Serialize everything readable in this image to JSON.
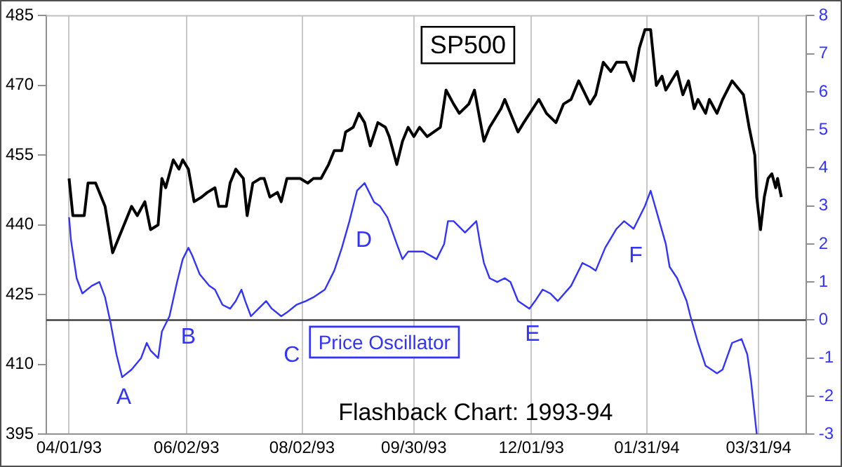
{
  "chart_data": {
    "type": "line",
    "title": "Flashback Chart: 1993-94",
    "xlim": [
      "1993-03-20",
      "1994-04-25"
    ],
    "xticks": [
      {
        "value": "1993-04-01",
        "label": "04/01/93"
      },
      {
        "value": "1993-06-02",
        "label": "06/02/93"
      },
      {
        "value": "1993-08-02",
        "label": "08/02/93"
      },
      {
        "value": "1993-09-30",
        "label": "09/30/93"
      },
      {
        "value": "1993-12-01",
        "label": "12/01/93"
      },
      {
        "value": "1994-01-31",
        "label": "01/31/94"
      },
      {
        "value": "1994-03-31",
        "label": "03/31/94"
      }
    ],
    "ylim": [
      395,
      485
    ],
    "yticks": [
      395,
      410,
      425,
      440,
      455,
      470,
      485
    ],
    "y2lim": [
      -3,
      8
    ],
    "y2ticks": [
      -3,
      -2,
      -1,
      0,
      1,
      2,
      3,
      4,
      5,
      6,
      7,
      8
    ],
    "grid": "x",
    "legend": false,
    "series": [
      {
        "name": "SP500",
        "color": "#000000",
        "x": [
          "1993-04-01",
          "1993-04-03",
          "1993-04-05",
          "1993-04-09",
          "1993-04-11",
          "1993-04-15",
          "1993-04-20",
          "1993-04-24",
          "1993-04-28",
          "1993-05-04",
          "1993-05-07",
          "1993-05-11",
          "1993-05-14",
          "1993-05-18",
          "1993-05-20",
          "1993-05-22",
          "1993-05-26",
          "1993-05-29",
          "1993-05-31",
          "1993-06-03",
          "1993-06-06",
          "1993-06-10",
          "1993-06-13",
          "1993-06-17",
          "1993-06-19",
          "1993-06-23",
          "1993-06-25",
          "1993-06-28",
          "1993-07-02",
          "1993-07-04",
          "1993-07-07",
          "1993-07-11",
          "1993-07-13",
          "1993-07-16",
          "1993-07-20",
          "1993-07-22",
          "1993-07-25",
          "1993-07-28",
          "1993-08-01",
          "1993-08-05",
          "1993-08-08",
          "1993-08-12",
          "1993-08-16",
          "1993-08-19",
          "1993-08-23",
          "1993-08-25",
          "1993-08-29",
          "1993-09-01",
          "1993-09-04",
          "1993-09-07",
          "1993-09-11",
          "1993-09-15",
          "1993-09-17",
          "1993-09-21",
          "1993-09-24",
          "1993-09-27",
          "1993-09-30",
          "1993-10-03",
          "1993-10-07",
          "1993-10-14",
          "1993-10-17",
          "1993-10-21",
          "1993-10-24",
          "1993-10-29",
          "1993-11-01",
          "1993-11-06",
          "1993-11-09",
          "1993-11-15",
          "1993-11-17",
          "1993-11-24",
          "1993-11-27",
          "1993-12-05",
          "1993-12-09",
          "1993-12-14",
          "1993-12-18",
          "1993-12-22",
          "1993-12-26",
          "1994-01-01",
          "1994-01-04",
          "1994-01-08",
          "1994-01-12",
          "1994-01-15",
          "1994-01-20",
          "1994-01-24",
          "1994-01-27",
          "1994-01-30",
          "1994-02-02",
          "1994-02-05",
          "1994-02-08",
          "1994-02-10",
          "1994-02-16",
          "1994-02-19",
          "1994-02-22",
          "1994-02-25",
          "1994-02-27",
          "1994-03-03",
          "1994-03-05",
          "1994-03-09",
          "1994-03-12",
          "1994-03-17",
          "1994-03-21",
          "1994-03-23",
          "1994-03-26",
          "1994-03-29",
          "1994-03-30",
          "1994-04-01",
          "1994-04-03",
          "1994-04-05",
          "1994-04-07",
          "1994-04-09",
          "1994-04-10",
          "1994-04-12"
        ],
        "values": [
          450,
          442,
          442,
          442,
          449,
          449,
          444,
          434,
          438,
          444,
          442,
          445,
          439,
          440,
          450,
          448,
          454,
          452,
          454,
          452,
          445,
          446,
          447,
          448,
          444,
          444,
          449,
          452,
          450,
          442,
          449,
          450,
          450,
          446,
          447,
          445,
          450,
          450,
          450,
          449,
          450,
          450,
          453,
          456,
          456,
          460,
          461,
          464,
          462,
          457,
          462,
          461,
          459,
          453,
          458,
          461,
          459,
          461,
          459,
          461,
          469,
          466,
          464,
          466,
          469,
          458,
          461,
          465,
          467,
          460,
          462,
          467,
          464,
          462,
          466,
          467,
          471,
          466,
          468,
          475,
          473,
          475,
          475,
          471,
          478,
          482,
          482,
          470,
          472,
          469,
          473,
          468,
          471,
          465,
          467,
          464,
          467,
          464,
          467,
          471,
          469,
          468,
          461,
          455,
          446,
          439,
          446,
          450,
          451,
          448,
          450,
          446
        ]
      },
      {
        "name": "Price Oscillator",
        "color": "#3333ff",
        "axis": "y2",
        "x": [
          "1993-04-01",
          "1993-04-02",
          "1993-04-05",
          "1993-04-08",
          "1993-04-13",
          "1993-04-17",
          "1993-04-20",
          "1993-04-23",
          "1993-04-26",
          "1993-04-29",
          "1993-05-04",
          "1993-05-09",
          "1993-05-12",
          "1993-05-14",
          "1993-05-18",
          "1993-05-20",
          "1993-05-24",
          "1993-05-28",
          "1993-05-31",
          "1993-06-03",
          "1993-06-05",
          "1993-06-09",
          "1993-06-14",
          "1993-06-17",
          "1993-06-21",
          "1993-06-25",
          "1993-06-28",
          "1993-07-01",
          "1993-07-03",
          "1993-07-06",
          "1993-07-10",
          "1993-07-14",
          "1993-07-17",
          "1993-07-22",
          "1993-07-25",
          "1993-07-30",
          "1993-08-04",
          "1993-08-08",
          "1993-08-14",
          "1993-08-19",
          "1993-08-23",
          "1993-08-27",
          "1993-08-31",
          "1993-09-04",
          "1993-09-09",
          "1993-09-12",
          "1993-09-16",
          "1993-09-21",
          "1993-09-24",
          "1993-09-27",
          "1993-10-05",
          "1993-10-12",
          "1993-10-16",
          "1993-10-18",
          "1993-10-21",
          "1993-10-27",
          "1993-11-02",
          "1993-11-04",
          "1993-11-06",
          "1993-11-09",
          "1993-11-13",
          "1993-11-17",
          "1993-11-20",
          "1993-11-24",
          "1993-11-30",
          "1993-12-03",
          "1993-12-07",
          "1993-12-11",
          "1993-12-15",
          "1993-12-22",
          "1993-12-28",
          "1994-01-01",
          "1994-01-04",
          "1994-01-09",
          "1994-01-15",
          "1994-01-19",
          "1994-01-24",
          "1994-01-30",
          "1994-02-02",
          "1994-02-06",
          "1994-02-10",
          "1994-02-12",
          "1994-02-16",
          "1994-02-21",
          "1994-02-23",
          "1994-02-27",
          "1994-03-03",
          "1994-03-09",
          "1994-03-12",
          "1994-03-17",
          "1994-03-22",
          "1994-03-25",
          "1994-03-27",
          "1994-03-30"
        ],
        "values": [
          2.7,
          2.1,
          1.1,
          0.7,
          0.9,
          1.0,
          0.6,
          -0.1,
          -0.9,
          -1.5,
          -1.3,
          -1.0,
          -0.6,
          -0.8,
          -1.0,
          -0.3,
          0.1,
          1.0,
          1.6,
          1.9,
          1.7,
          1.2,
          0.9,
          0.8,
          0.4,
          0.3,
          0.5,
          0.8,
          0.5,
          0.1,
          0.3,
          0.5,
          0.3,
          0.1,
          0.2,
          0.4,
          0.5,
          0.6,
          0.8,
          1.3,
          1.9,
          2.6,
          3.4,
          3.6,
          3.1,
          3.0,
          2.7,
          2.0,
          1.6,
          1.8,
          1.8,
          1.6,
          2.0,
          2.6,
          2.6,
          2.3,
          2.6,
          2.0,
          1.5,
          1.1,
          1.0,
          1.1,
          1.0,
          0.5,
          0.3,
          0.5,
          0.8,
          0.7,
          0.5,
          0.9,
          1.5,
          1.4,
          1.3,
          1.9,
          2.4,
          2.6,
          2.4,
          3.0,
          3.4,
          2.7,
          2.0,
          1.4,
          1.1,
          0.5,
          0.1,
          -0.6,
          -1.2,
          -1.4,
          -1.3,
          -0.6,
          -0.5,
          -0.9,
          -1.6,
          -3.0
        ]
      }
    ],
    "ref_lines": [
      {
        "axis": "y2",
        "value": 0,
        "color": "#404040"
      }
    ],
    "annotations": [
      "A",
      "B",
      "C",
      "D",
      "E",
      "F"
    ]
  }
}
